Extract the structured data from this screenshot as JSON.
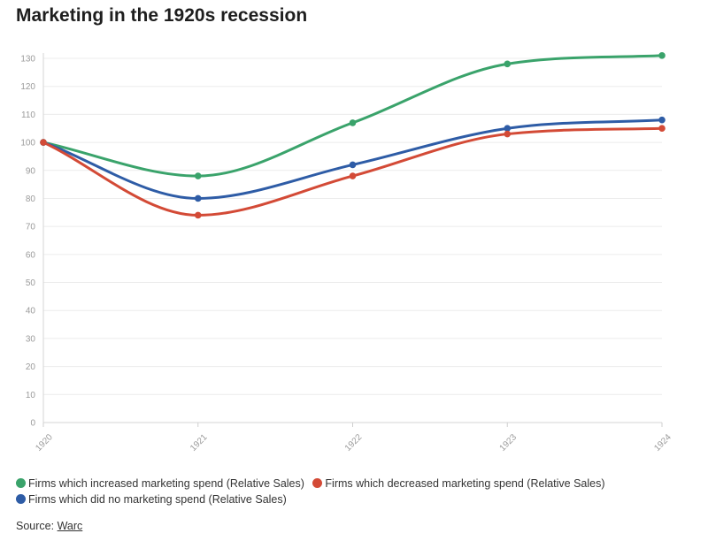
{
  "chart_data": {
    "type": "line",
    "title": "Marketing in the 1920s recession",
    "xlabel": "",
    "ylabel": "",
    "categories": [
      "1920",
      "1921",
      "1922",
      "1923",
      "1924"
    ],
    "ylim": [
      0,
      130
    ],
    "yticks": [
      0,
      10,
      20,
      30,
      40,
      50,
      60,
      70,
      80,
      90,
      100,
      110,
      120,
      130
    ],
    "series": [
      {
        "name": "Firms which increased marketing spend (Relative Sales)",
        "color": "#3aa36b",
        "values": [
          100,
          88,
          107,
          128,
          131
        ]
      },
      {
        "name": "Firms which decreased marketing spend (Relative Sales)",
        "color": "#d34a36",
        "values": [
          100,
          74,
          88,
          103,
          105
        ]
      },
      {
        "name": "Firms which did no marketing spend (Relative Sales)",
        "color": "#2e5ca6",
        "values": [
          100,
          80,
          92,
          105,
          108
        ]
      }
    ]
  },
  "source": {
    "label": "Source:",
    "link_text": "Warc"
  }
}
